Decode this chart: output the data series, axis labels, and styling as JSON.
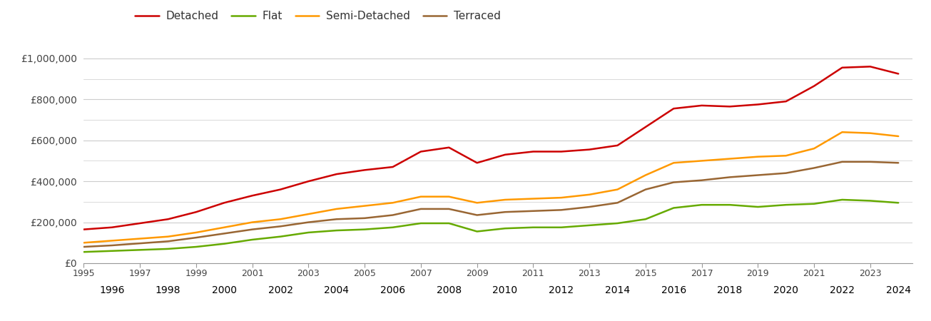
{
  "legend_labels": [
    "Detached",
    "Flat",
    "Semi-Detached",
    "Terraced"
  ],
  "colors": {
    "Detached": "#cc0000",
    "Flat": "#66aa00",
    "Semi-Detached": "#ff9900",
    "Terraced": "#996633"
  },
  "years": [
    1995,
    1996,
    1997,
    1998,
    1999,
    2000,
    2001,
    2002,
    2003,
    2004,
    2005,
    2006,
    2007,
    2008,
    2009,
    2010,
    2011,
    2012,
    2013,
    2014,
    2015,
    2016,
    2017,
    2018,
    2019,
    2020,
    2021,
    2022,
    2023,
    2024
  ],
  "Detached": [
    165000,
    175000,
    195000,
    215000,
    250000,
    295000,
    330000,
    360000,
    400000,
    435000,
    455000,
    470000,
    545000,
    565000,
    490000,
    530000,
    545000,
    545000,
    555000,
    575000,
    665000,
    755000,
    770000,
    765000,
    775000,
    790000,
    865000,
    955000,
    960000,
    925000
  ],
  "Flat": [
    55000,
    60000,
    65000,
    70000,
    80000,
    95000,
    115000,
    130000,
    150000,
    160000,
    165000,
    175000,
    195000,
    195000,
    155000,
    170000,
    175000,
    175000,
    185000,
    195000,
    215000,
    270000,
    285000,
    285000,
    275000,
    285000,
    290000,
    310000,
    305000,
    295000
  ],
  "Semi-Detached": [
    100000,
    110000,
    120000,
    130000,
    150000,
    175000,
    200000,
    215000,
    240000,
    265000,
    280000,
    295000,
    325000,
    325000,
    295000,
    310000,
    315000,
    320000,
    335000,
    360000,
    430000,
    490000,
    500000,
    510000,
    520000,
    525000,
    560000,
    640000,
    635000,
    620000
  ],
  "Terraced": [
    80000,
    87000,
    97000,
    107000,
    125000,
    145000,
    165000,
    180000,
    200000,
    215000,
    220000,
    235000,
    265000,
    265000,
    235000,
    250000,
    255000,
    260000,
    275000,
    295000,
    360000,
    395000,
    405000,
    420000,
    430000,
    440000,
    465000,
    495000,
    495000,
    490000
  ],
  "ylim": [
    0,
    1050000
  ],
  "yticks": [
    0,
    200000,
    400000,
    600000,
    800000,
    1000000
  ],
  "ytick_labels": [
    "£0",
    "£200,000",
    "£400,000",
    "£600,000",
    "£800,000",
    "£1,000,000"
  ],
  "minor_yticks": [
    100000,
    300000,
    500000,
    700000,
    900000
  ],
  "xtick_odd": [
    1995,
    1997,
    1999,
    2001,
    2003,
    2005,
    2007,
    2009,
    2011,
    2013,
    2015,
    2017,
    2019,
    2021,
    2023
  ],
  "xtick_even": [
    1996,
    1998,
    2000,
    2002,
    2004,
    2006,
    2008,
    2010,
    2012,
    2014,
    2016,
    2018,
    2020,
    2022,
    2024
  ],
  "bg_color": "#ffffff",
  "grid_color": "#cccccc",
  "line_width": 1.8,
  "xlim": [
    1995,
    2024.5
  ]
}
